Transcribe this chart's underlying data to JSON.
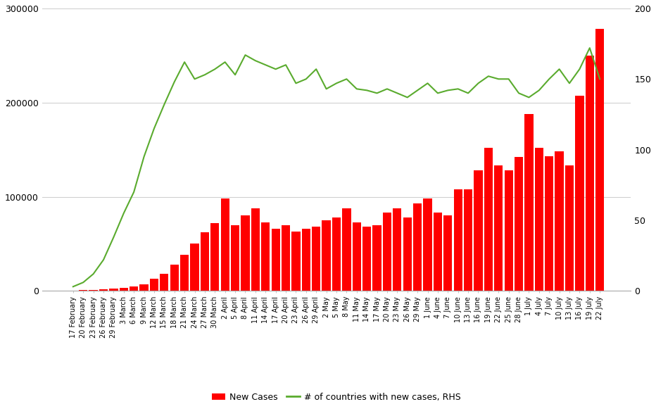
{
  "bar_color": "#ff0000",
  "line_color": "#5aab2e",
  "background_color": "#ffffff",
  "grid_color": "#d0d0d0",
  "ylim_left": [
    0,
    300000
  ],
  "ylim_right": [
    0,
    200
  ],
  "yticks_left": [
    0,
    100000,
    200000,
    300000
  ],
  "yticks_right": [
    0,
    50,
    100,
    150,
    200
  ],
  "labels": [
    "17 February",
    "20 February",
    "23 February",
    "26 February",
    "29 February",
    "3 March",
    "6 March",
    "9 March",
    "12 March",
    "15 March",
    "18 March",
    "21 March",
    "24 March",
    "27 March",
    "30 March",
    "2 April",
    "5 April",
    "8 April",
    "11 April",
    "14 April",
    "17 April",
    "20 April",
    "23 April",
    "26 April",
    "29 April",
    "2 May",
    "5 May",
    "8 May",
    "11 May",
    "14 May",
    "17 May",
    "20 May",
    "23 May",
    "26 May",
    "29 May",
    "1 June",
    "4 June",
    "7 June",
    "10 June",
    "13 June",
    "16 June",
    "19 June",
    "22 June",
    "25 June",
    "28 June",
    "1 July",
    "4 July",
    "7 July",
    "10 July",
    "13 July",
    "16 July",
    "19 July",
    "22 July"
  ],
  "new_cases": [
    300,
    600,
    1200,
    1800,
    2200,
    3000,
    4500,
    7000,
    13000,
    18000,
    28000,
    38000,
    50000,
    62000,
    72000,
    98000,
    70000,
    80000,
    88000,
    73000,
    66000,
    70000,
    63000,
    66000,
    68000,
    75000,
    78000,
    88000,
    73000,
    68000,
    70000,
    83000,
    88000,
    78000,
    93000,
    98000,
    83000,
    80000,
    108000,
    108000,
    128000,
    152000,
    133000,
    128000,
    142000,
    188000,
    152000,
    143000,
    148000,
    133000,
    207000,
    250000,
    278000
  ],
  "countries_rhs": [
    3,
    6,
    12,
    22,
    38,
    55,
    70,
    95,
    115,
    132,
    148,
    162,
    150,
    153,
    157,
    162,
    153,
    167,
    163,
    160,
    157,
    160,
    147,
    150,
    157,
    143,
    147,
    150,
    143,
    142,
    140,
    143,
    140,
    137,
    142,
    147,
    140,
    142,
    143,
    140,
    147,
    152,
    150,
    150,
    140,
    137,
    142,
    150,
    157,
    147,
    157,
    172,
    150
  ],
  "legend_new_cases": "New Cases",
  "legend_rhs": "# of countries with new cases, RHS"
}
